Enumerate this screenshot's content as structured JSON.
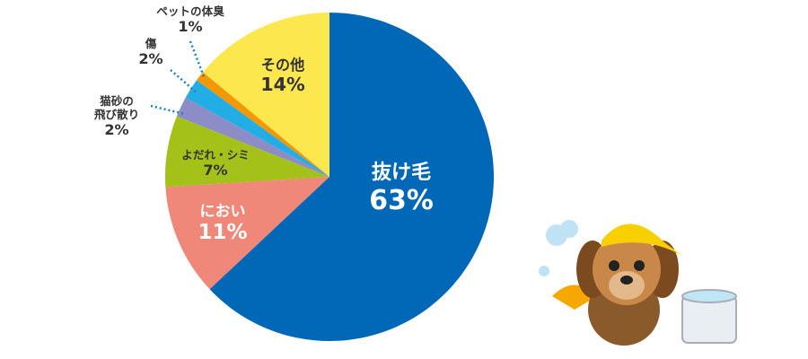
{
  "chart_data": {
    "type": "pie",
    "categories": [
      "抜け毛",
      "におい",
      "よだれ・シミ",
      "猫砂の\n飛び散り",
      "傷",
      "ペットの体臭",
      "その他"
    ],
    "values": [
      63,
      11,
      7,
      2,
      2,
      1,
      14
    ],
    "value_labels": [
      "63%",
      "11%",
      "7%",
      "2%",
      "2%",
      "1%",
      "14%"
    ],
    "colors": [
      "#0068b7",
      "#ef8878",
      "#a4c11a",
      "#8c8dc6",
      "#22aee5",
      "#f39800",
      "#fde74f"
    ]
  }
}
